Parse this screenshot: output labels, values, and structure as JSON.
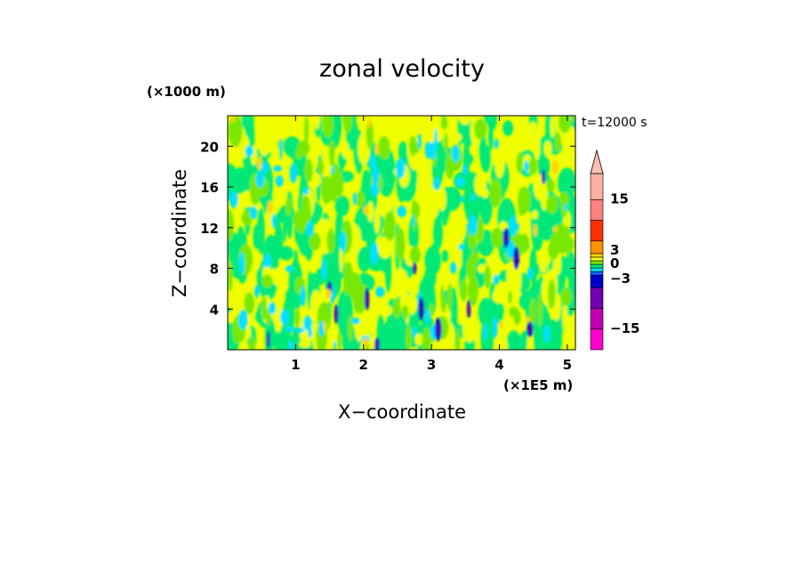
{
  "chart_data": {
    "type": "heatmap",
    "title": "zonal velocity",
    "xlabel": "X−coordinate",
    "ylabel": "Z−coordinate",
    "x_unit": "(×1E5 m)",
    "y_unit": "(×1000 m)",
    "time_label": "t=12000 s",
    "x_ticks": [
      "1",
      "2",
      "3",
      "4",
      "5"
    ],
    "x_tick_values": [
      1,
      2,
      3,
      4,
      5
    ],
    "y_ticks": [
      "4",
      "8",
      "12",
      "16",
      "20"
    ],
    "y_tick_values": [
      4,
      8,
      12,
      16,
      20
    ],
    "xlim": [
      0.0,
      5.12
    ],
    "ylim": [
      0.0,
      23.0
    ],
    "colorbar": {
      "levels": [
        -21,
        -15,
        -9,
        -6,
        -3,
        -2,
        -1,
        0,
        1,
        2,
        3,
        6,
        9,
        15,
        21
      ],
      "colors": [
        "#ff00cc",
        "#c000b0",
        "#7000b0",
        "#0000c8",
        "#1060ff",
        "#00e0ff",
        "#00e878",
        "#78e800",
        "#f0ff00",
        "#ffd000",
        "#ff9000",
        "#ff3000",
        "#ff8080",
        "#ffb0a0"
      ],
      "tick_labels": [
        "−15",
        "−3",
        "0",
        "3",
        "15"
      ],
      "tick_values": [
        -15,
        -3,
        0,
        3,
        15
      ],
      "extend": "max"
    },
    "field_summary": {
      "background_range": [
        -1,
        1
      ],
      "description_values": "mostly weak flow between -1 and +1 m/s with scattered negative cores down to about -9 near x=1.5-4.3 and positive patches up to about +3"
    }
  }
}
